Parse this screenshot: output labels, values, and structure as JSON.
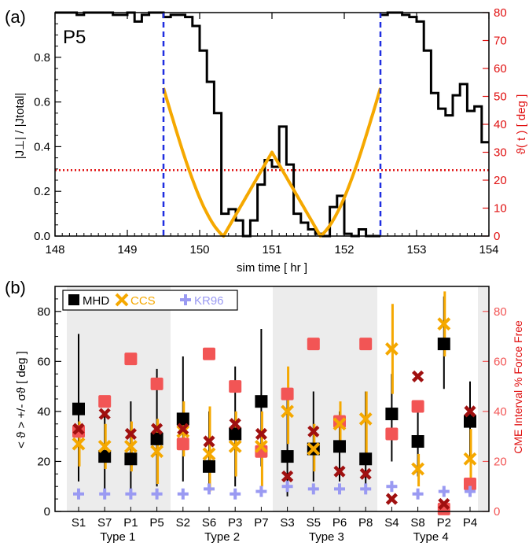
{
  "panel_a": {
    "label": "(a)",
    "annotation": "P5",
    "xlabel": "sim time  [ hr ]",
    "ylabel_left": "|J⊥| / |Jtotal|",
    "ylabel_right": "ϑ( t )  [ deg ]",
    "colors": {
      "black": "#000000",
      "orange": "#f5a800",
      "blue": "#1f2ee0",
      "red": "#e01010"
    }
  },
  "panel_b": {
    "label": "(b)",
    "ylabel_left": "< ϑ > +/- σϑ   [ deg ]",
    "ylabel_right": "CME Interval  % Force Free",
    "legend": [
      "MHD",
      "CCS",
      "KR96"
    ],
    "colors": {
      "mhd": "#000000",
      "ccs": "#f5a800",
      "kr96": "#9a9af2",
      "force_free": "#f25555",
      "cme": "#a01010",
      "shade": "#ececec"
    }
  },
  "chart_data": [
    {
      "type": "line",
      "title": "",
      "xlim": [
        148,
        154
      ],
      "ylim": [
        0,
        1.0
      ],
      "y2lim": [
        0,
        80
      ],
      "xticks": [
        "148",
        "149",
        "150",
        "151",
        "152",
        "153",
        "154"
      ],
      "yticks": [
        "0.0",
        "0.2",
        "0.4",
        "0.6",
        "0.8"
      ],
      "y2ticks": [
        "0",
        "10",
        "20",
        "30",
        "40",
        "50",
        "60",
        "70",
        "80"
      ],
      "series": [
        {
          "axis": "left",
          "style": "step",
          "x": [
            148.0,
            148.1,
            148.2,
            148.3,
            148.4,
            148.5,
            148.6,
            148.7,
            148.8,
            148.9,
            149.0,
            149.1,
            149.2,
            149.3,
            149.4,
            149.5,
            149.6,
            149.7,
            149.8,
            149.9,
            150.0,
            150.1,
            150.2,
            150.3,
            150.4,
            150.5,
            150.6,
            150.7,
            150.8,
            150.9,
            151.0,
            151.1,
            151.2,
            151.3,
            151.4,
            151.5,
            151.6,
            151.7,
            151.8,
            151.9,
            152.0,
            152.1,
            152.2,
            152.3,
            152.4,
            152.5,
            152.6,
            152.7,
            152.8,
            152.9,
            153.0,
            153.1,
            153.2,
            153.3,
            153.4,
            153.5,
            153.6,
            153.7,
            153.8,
            153.9
          ],
          "values": [
            1.0,
            1.0,
            1.0,
            0.99,
            1.0,
            1.0,
            1.0,
            1.0,
            0.99,
            0.99,
            1.0,
            0.96,
            0.99,
            1.0,
            1.0,
            0.98,
            0.99,
            0.99,
            0.98,
            0.94,
            0.83,
            0.69,
            0.55,
            0.1,
            0.12,
            0.07,
            0.0,
            0.07,
            0.23,
            0.34,
            0.31,
            0.49,
            0.32,
            0.1,
            0.06,
            0.03,
            0.01,
            0.0,
            0.13,
            0.18,
            0.01,
            0.0,
            0.03,
            0.0,
            0.0,
            0.0,
            0.1,
            0.3,
            0.44,
            0.68,
            0.99,
            1.0,
            1.0,
            1.0,
            0.99,
            0.99,
            0.97,
            0.98,
            0.96,
            0.9
          ]
        },
        {
          "axis": "left",
          "style": "step",
          "x": [
            152.5,
            152.6,
            152.7,
            152.8,
            152.9,
            153.0,
            153.1,
            153.2,
            153.3,
            153.4,
            153.5,
            153.6,
            153.7,
            153.8,
            153.9
          ],
          "values": [
            0.99,
            1.0,
            1.0,
            0.99,
            0.98,
            0.96,
            0.83,
            0.64,
            0.57,
            0.54,
            0.63,
            0.68,
            0.56,
            0.58,
            0.42
          ]
        },
        {
          "axis": "right",
          "style": "line",
          "x": [
            149.5,
            150.33,
            150.0,
            151.0,
            151.67,
            152.5
          ],
          "values": [
            53,
            0,
            20,
            30,
            0,
            53
          ]
        },
        {
          "axis": "right",
          "style": "dashed-vertical",
          "x": [
            149.5,
            152.5
          ]
        },
        {
          "axis": "left",
          "style": "dotted-horizontal",
          "values": [
            0.295
          ]
        }
      ]
    },
    {
      "type": "scatter",
      "title": "",
      "ylim": [
        0,
        90
      ],
      "y2lim": [
        0,
        90
      ],
      "yticks": [
        "0",
        "20",
        "40",
        "60",
        "80"
      ],
      "y2ticks": [
        "0",
        "20",
        "40",
        "60",
        "80"
      ],
      "categories": [
        "S1",
        "S7",
        "P1",
        "P5",
        "S2",
        "S6",
        "P3",
        "P7",
        "S3",
        "S5",
        "P6",
        "P8",
        "S4",
        "S8",
        "P2",
        "P4"
      ],
      "groups": [
        {
          "name": "Type 1",
          "members": [
            "S1",
            "S7",
            "P1",
            "P5"
          ]
        },
        {
          "name": "Type 2",
          "members": [
            "S2",
            "S6",
            "P3",
            "P7"
          ]
        },
        {
          "name": "Type 3",
          "members": [
            "S3",
            "S5",
            "P6",
            "P8"
          ]
        },
        {
          "name": "Type 4",
          "members": [
            "S4",
            "S8",
            "P2",
            "P4"
          ]
        }
      ],
      "series": [
        {
          "name": "MHD",
          "values": [
            41,
            22,
            21,
            29,
            37,
            18,
            31,
            44,
            22,
            25,
            26,
            21,
            39,
            28,
            67,
            36
          ],
          "err_low": [
            12,
            8,
            6,
            10,
            12,
            8,
            10,
            18,
            6,
            12,
            12,
            7,
            20,
            14,
            49,
            20
          ],
          "err_high": [
            71,
            40,
            44,
            57,
            62,
            40,
            58,
            73,
            48,
            48,
            40,
            48,
            55,
            42,
            86,
            52
          ]
        },
        {
          "name": "CCS",
          "values": [
            27,
            26,
            26,
            24,
            32,
            23,
            26,
            26,
            40,
            25,
            35,
            37,
            65,
            17,
            75,
            21
          ],
          "err_low": [
            18,
            17,
            16,
            11,
            22,
            8,
            14,
            10,
            27,
            16,
            26,
            20,
            47,
            10,
            62,
            12
          ],
          "err_high": [
            36,
            35,
            36,
            37,
            44,
            42,
            40,
            40,
            58,
            35,
            44,
            48,
            83,
            23,
            88,
            33
          ]
        },
        {
          "name": "KR96",
          "values": [
            7,
            7,
            7,
            7,
            7,
            9,
            7,
            8,
            10,
            9,
            9,
            9,
            10,
            7,
            8,
            8
          ]
        },
        {
          "name": "% Force Free",
          "values": [
            32,
            44,
            61,
            51,
            27,
            63,
            50,
            24,
            47,
            67,
            36,
            67,
            31,
            42,
            1,
            11
          ]
        },
        {
          "name": "CME Interval",
          "values": [
            33,
            39,
            31,
            33,
            33,
            28,
            35,
            31,
            14,
            32,
            16,
            15,
            5,
            54,
            3,
            40
          ]
        }
      ]
    }
  ]
}
